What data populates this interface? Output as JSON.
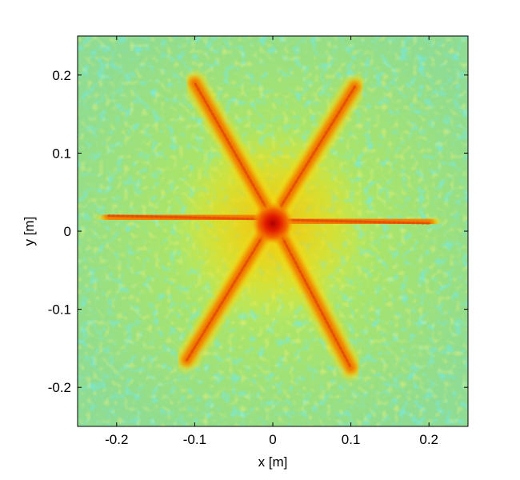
{
  "chart_data": {
    "type": "heatmap",
    "xlabel": "x [m]",
    "ylabel": "y [m]",
    "xlim": [
      -0.25,
      0.25
    ],
    "ylim": [
      -0.25,
      0.25
    ],
    "x_ticks": [
      -0.2,
      -0.1,
      0,
      0.1,
      0.2
    ],
    "y_ticks": [
      -0.2,
      -0.1,
      0,
      0.1,
      0.2
    ],
    "x_tick_labels": [
      "-0.2",
      "-0.1",
      "0",
      "0.1",
      "0.2"
    ],
    "y_tick_labels": [
      "-0.2",
      "-0.1",
      "0",
      "0.1",
      "0.2"
    ],
    "colormap": "jet",
    "background_level": "cyan-green-yellow noise",
    "features": [
      {
        "kind": "peak",
        "x": 0.0,
        "y": 0.01,
        "level": "max (dark red)"
      },
      {
        "kind": "ray",
        "from": [
          0.0,
          0.015
        ],
        "to": [
          0.2,
          0.01
        ]
      },
      {
        "kind": "ray",
        "from": [
          0.0,
          0.015
        ],
        "to": [
          -0.21,
          0.02
        ]
      },
      {
        "kind": "ray",
        "from": [
          0.0,
          0.015
        ],
        "to": [
          0.105,
          0.185
        ]
      },
      {
        "kind": "ray",
        "from": [
          0.0,
          0.015
        ],
        "to": [
          -0.1,
          0.19
        ]
      },
      {
        "kind": "ray",
        "from": [
          0.0,
          0.015
        ],
        "to": [
          0.1,
          -0.175
        ]
      },
      {
        "kind": "ray",
        "from": [
          0.0,
          0.015
        ],
        "to": [
          -0.11,
          -0.165
        ]
      }
    ],
    "grid": false,
    "legend": "none"
  }
}
